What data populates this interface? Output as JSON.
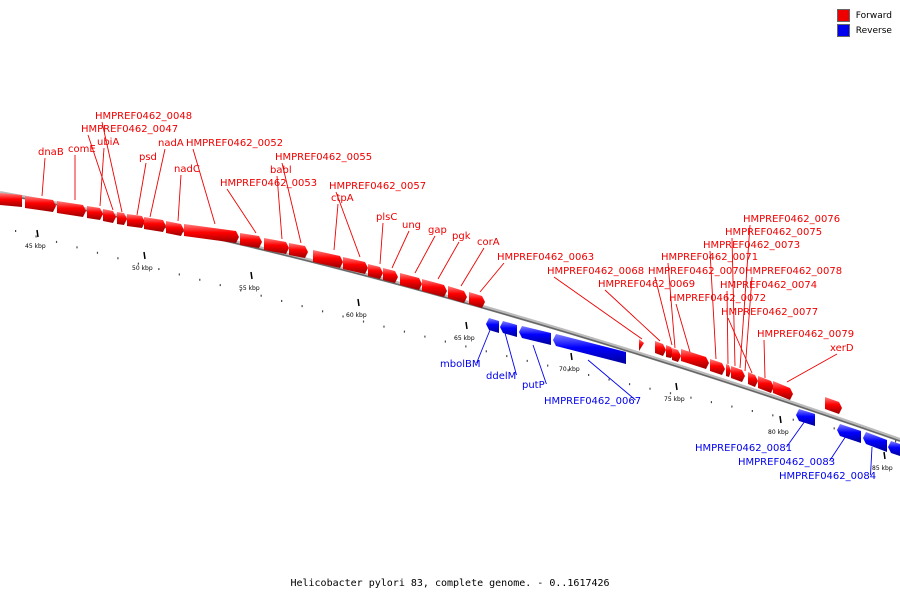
{
  "colors": {
    "forward": "#ee0000",
    "reverse": "#0000ee",
    "backbone": "#777777"
  },
  "legend": [
    {
      "label": "Forward",
      "color": "#ee0000"
    },
    {
      "label": "Reverse",
      "color": "#0000ee"
    }
  ],
  "caption": "Helicobacter pylori 83, complete genome. - 0..1617426",
  "ticks": [
    {
      "label": "45 kbp",
      "kbp": 45
    },
    {
      "label": "50 kbp",
      "kbp": 50
    },
    {
      "label": "55 kbp",
      "kbp": 55
    },
    {
      "label": "60 kbp",
      "kbp": 60
    },
    {
      "label": "65 kbp",
      "kbp": 65
    },
    {
      "label": "70 kbp",
      "kbp": 70
    },
    {
      "label": "75 kbp",
      "kbp": 75
    },
    {
      "label": "80 kbp",
      "kbp": 80
    },
    {
      "label": "85 kbp",
      "kbp": 85
    }
  ],
  "forward_labels": [
    "dnaB",
    "comE",
    "ubiA",
    "HMPREF0462_0047",
    "HMPREF0462_0048",
    "psd",
    "nadA",
    "nadC",
    "HMPREF0462_0052",
    "HMPREF0462_0053",
    "babl",
    "HMPREF0462_0055",
    "ctpA",
    "HMPREF0462_0057",
    "plsC",
    "ung",
    "gap",
    "pgk",
    "corA",
    "HMPREF0462_0063",
    "HMPREF0462_0068",
    "HMPREF0462_0069",
    "HMPREF0462_0070",
    "HMPREF0462_0071",
    "HMPREF0462_0072",
    "HMPREF0462_0073",
    "HMPREF0462_0074",
    "HMPREF0462_0075",
    "HMPREF0462_0076",
    "HMPREF0462_0077",
    "HMPREF0462_0078",
    "HMPREF0462_0079",
    "xerD"
  ],
  "reverse_labels": [
    "mbolBM",
    "ddelM",
    "putP",
    "HMPREF0462_0067",
    "HMPREF0462_0081",
    "HMPREF0462_0083",
    "HMPREF0462_0084"
  ]
}
